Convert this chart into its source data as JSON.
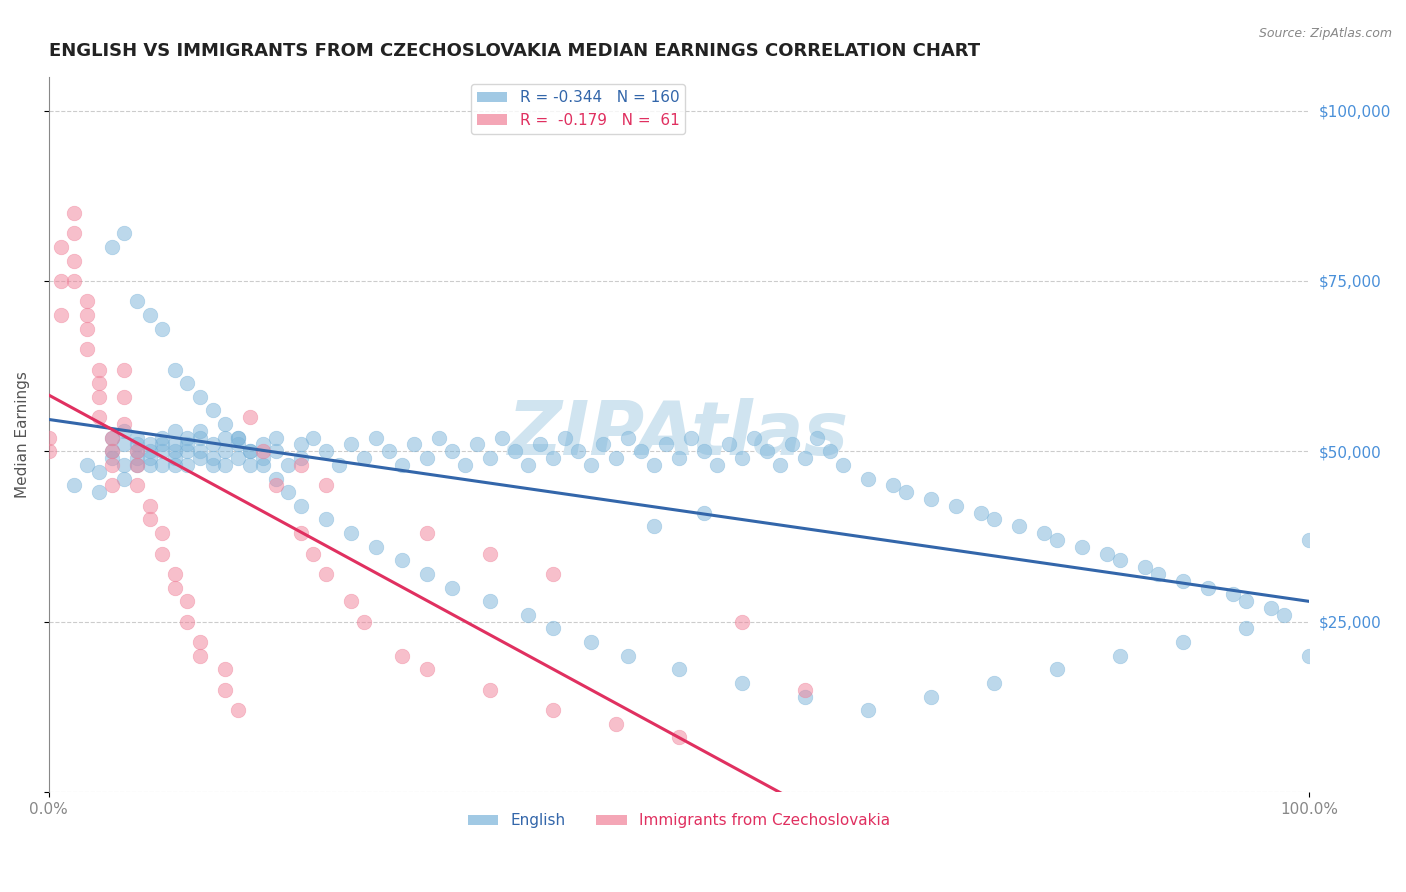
{
  "title": "ENGLISH VS IMMIGRANTS FROM CZECHOSLOVAKIA MEDIAN EARNINGS CORRELATION CHART",
  "source_text": "Source: ZipAtlas.com",
  "ylabel": "Median Earnings",
  "xlim": [
    0,
    1.0
  ],
  "ylim": [
    0,
    105000
  ],
  "yticks": [
    0,
    25000,
    50000,
    75000,
    100000
  ],
  "ytick_labels": [
    "",
    "$25,000",
    "$50,000",
    "$75,000",
    "$100,000"
  ],
  "xtick_labels": [
    "0.0%",
    "100.0%"
  ],
  "legend_series": [
    "English",
    "Immigrants from Czechoslovakia"
  ],
  "r_english": -0.344,
  "n_english": 160,
  "r_czech": -0.179,
  "n_czech": 61,
  "title_color": "#222222",
  "title_fontsize": 13,
  "axis_color": "#888888",
  "grid_color": "#cccccc",
  "watermark_color": "#d0e4f0",
  "english_color": "#7ab3d9",
  "czech_color": "#f08098",
  "english_line_color": "#3366aa",
  "czech_line_color": "#e03060",
  "background_color": "#ffffff",
  "english_x": [
    0.02,
    0.03,
    0.04,
    0.04,
    0.05,
    0.05,
    0.05,
    0.06,
    0.06,
    0.06,
    0.06,
    0.07,
    0.07,
    0.07,
    0.07,
    0.07,
    0.08,
    0.08,
    0.08,
    0.08,
    0.09,
    0.09,
    0.09,
    0.09,
    0.1,
    0.1,
    0.1,
    0.1,
    0.1,
    0.11,
    0.11,
    0.11,
    0.11,
    0.12,
    0.12,
    0.12,
    0.12,
    0.13,
    0.13,
    0.13,
    0.14,
    0.14,
    0.14,
    0.15,
    0.15,
    0.15,
    0.16,
    0.16,
    0.17,
    0.17,
    0.18,
    0.18,
    0.19,
    0.2,
    0.2,
    0.21,
    0.22,
    0.23,
    0.24,
    0.25,
    0.26,
    0.27,
    0.28,
    0.29,
    0.3,
    0.31,
    0.32,
    0.33,
    0.34,
    0.35,
    0.36,
    0.37,
    0.38,
    0.39,
    0.4,
    0.41,
    0.42,
    0.43,
    0.44,
    0.45,
    0.46,
    0.47,
    0.48,
    0.49,
    0.5,
    0.51,
    0.52,
    0.53,
    0.54,
    0.55,
    0.56,
    0.57,
    0.58,
    0.59,
    0.6,
    0.61,
    0.62,
    0.63,
    0.65,
    0.67,
    0.68,
    0.7,
    0.72,
    0.74,
    0.75,
    0.77,
    0.79,
    0.8,
    0.82,
    0.84,
    0.85,
    0.87,
    0.88,
    0.9,
    0.92,
    0.94,
    0.95,
    0.97,
    0.98,
    1.0,
    0.05,
    0.06,
    0.07,
    0.08,
    0.09,
    0.1,
    0.11,
    0.12,
    0.13,
    0.14,
    0.15,
    0.16,
    0.17,
    0.18,
    0.19,
    0.2,
    0.22,
    0.24,
    0.26,
    0.28,
    0.3,
    0.32,
    0.35,
    0.38,
    0.4,
    0.43,
    0.46,
    0.5,
    0.55,
    0.6,
    0.65,
    0.7,
    0.75,
    0.8,
    0.85,
    0.9,
    0.95,
    1.0,
    0.48,
    0.52
  ],
  "english_y": [
    45000,
    48000,
    47000,
    44000,
    50000,
    52000,
    49000,
    51000,
    48000,
    46000,
    53000,
    50000,
    49000,
    51000,
    48000,
    52000,
    50000,
    48000,
    51000,
    49000,
    52000,
    50000,
    48000,
    51000,
    53000,
    50000,
    48000,
    51000,
    49000,
    52000,
    50000,
    48000,
    51000,
    49000,
    52000,
    50000,
    53000,
    48000,
    51000,
    49000,
    52000,
    50000,
    48000,
    51000,
    49000,
    52000,
    50000,
    48000,
    51000,
    49000,
    52000,
    50000,
    48000,
    51000,
    49000,
    52000,
    50000,
    48000,
    51000,
    49000,
    52000,
    50000,
    48000,
    51000,
    49000,
    52000,
    50000,
    48000,
    51000,
    49000,
    52000,
    50000,
    48000,
    51000,
    49000,
    52000,
    50000,
    48000,
    51000,
    49000,
    52000,
    50000,
    48000,
    51000,
    49000,
    52000,
    50000,
    48000,
    51000,
    49000,
    52000,
    50000,
    48000,
    51000,
    49000,
    52000,
    50000,
    48000,
    46000,
    45000,
    44000,
    43000,
    42000,
    41000,
    40000,
    39000,
    38000,
    37000,
    36000,
    35000,
    34000,
    33000,
    32000,
    31000,
    30000,
    29000,
    28000,
    27000,
    26000,
    37000,
    80000,
    82000,
    72000,
    70000,
    68000,
    62000,
    60000,
    58000,
    56000,
    54000,
    52000,
    50000,
    48000,
    46000,
    44000,
    42000,
    40000,
    38000,
    36000,
    34000,
    32000,
    30000,
    28000,
    26000,
    24000,
    22000,
    20000,
    18000,
    16000,
    14000,
    12000,
    14000,
    16000,
    18000,
    20000,
    22000,
    24000,
    20000,
    39000,
    41000
  ],
  "czech_x": [
    0.0,
    0.0,
    0.01,
    0.01,
    0.01,
    0.02,
    0.02,
    0.02,
    0.02,
    0.03,
    0.03,
    0.03,
    0.03,
    0.04,
    0.04,
    0.04,
    0.04,
    0.05,
    0.05,
    0.05,
    0.05,
    0.06,
    0.06,
    0.06,
    0.07,
    0.07,
    0.07,
    0.08,
    0.08,
    0.09,
    0.09,
    0.1,
    0.1,
    0.11,
    0.11,
    0.12,
    0.12,
    0.14,
    0.14,
    0.15,
    0.16,
    0.17,
    0.18,
    0.2,
    0.21,
    0.22,
    0.24,
    0.25,
    0.28,
    0.3,
    0.35,
    0.4,
    0.45,
    0.5,
    0.55,
    0.6,
    0.2,
    0.22,
    0.3,
    0.35,
    0.4
  ],
  "czech_y": [
    50000,
    52000,
    80000,
    75000,
    70000,
    85000,
    82000,
    78000,
    75000,
    72000,
    70000,
    68000,
    65000,
    62000,
    60000,
    58000,
    55000,
    52000,
    50000,
    48000,
    45000,
    62000,
    58000,
    54000,
    50000,
    48000,
    45000,
    42000,
    40000,
    38000,
    35000,
    32000,
    30000,
    28000,
    25000,
    22000,
    20000,
    18000,
    15000,
    12000,
    55000,
    50000,
    45000,
    38000,
    35000,
    32000,
    28000,
    25000,
    20000,
    18000,
    15000,
    12000,
    10000,
    8000,
    25000,
    15000,
    48000,
    45000,
    38000,
    35000,
    32000
  ]
}
